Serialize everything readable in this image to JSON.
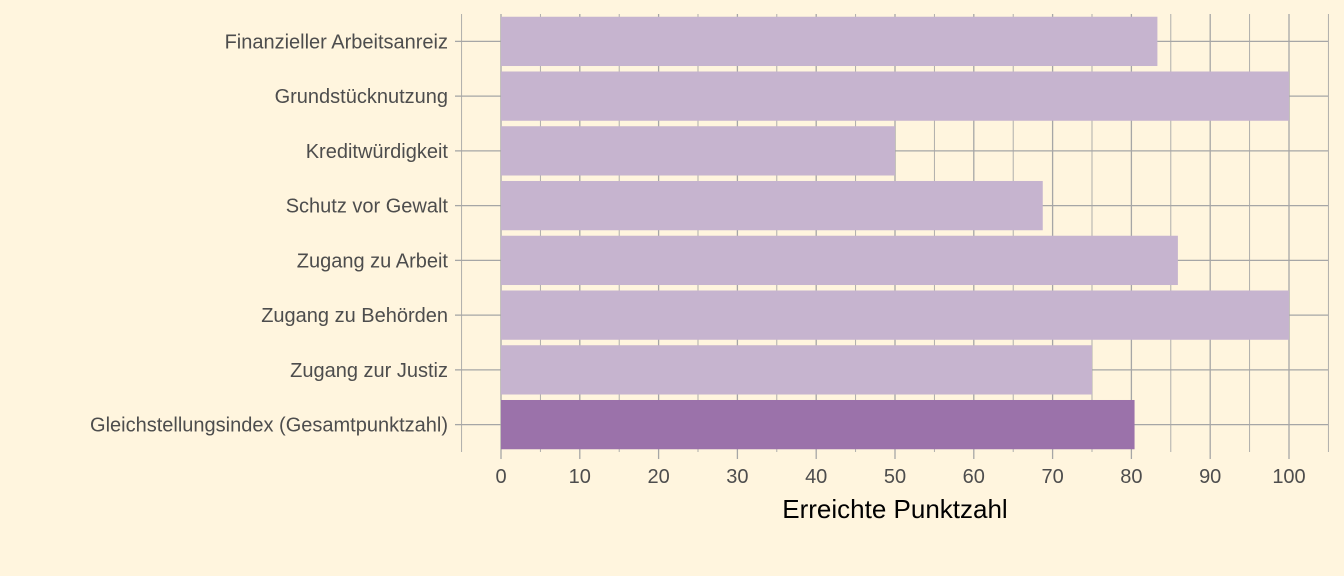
{
  "chart_data": {
    "type": "bar",
    "orientation": "horizontal",
    "categories": [
      "Finanzieller Arbeitsanreiz",
      "Grundstücknutzung",
      "Kreditwürdigkeit",
      "Schutz vor Gewalt",
      "Zugang zu Arbeit",
      "Zugang zu Behörden",
      "Zugang zur Justiz",
      "Gleichstellungsindex (Gesamtpunktzahl)"
    ],
    "values": [
      83.3,
      100,
      50,
      68.75,
      85.9,
      100,
      75,
      80.4
    ],
    "highlight_index": 7,
    "xlabel": "Erreichte Punktzahl",
    "ylabel": "",
    "title": "",
    "xlim": [
      -5,
      105
    ],
    "xticks": [
      0,
      10,
      20,
      30,
      40,
      50,
      60,
      70,
      80,
      90,
      100
    ],
    "grid": true,
    "colors": {
      "background": "#fff5de",
      "bar": "#c6b4cf",
      "bar_highlight": "#9b72aa",
      "grid": "#a6a6a6"
    }
  }
}
